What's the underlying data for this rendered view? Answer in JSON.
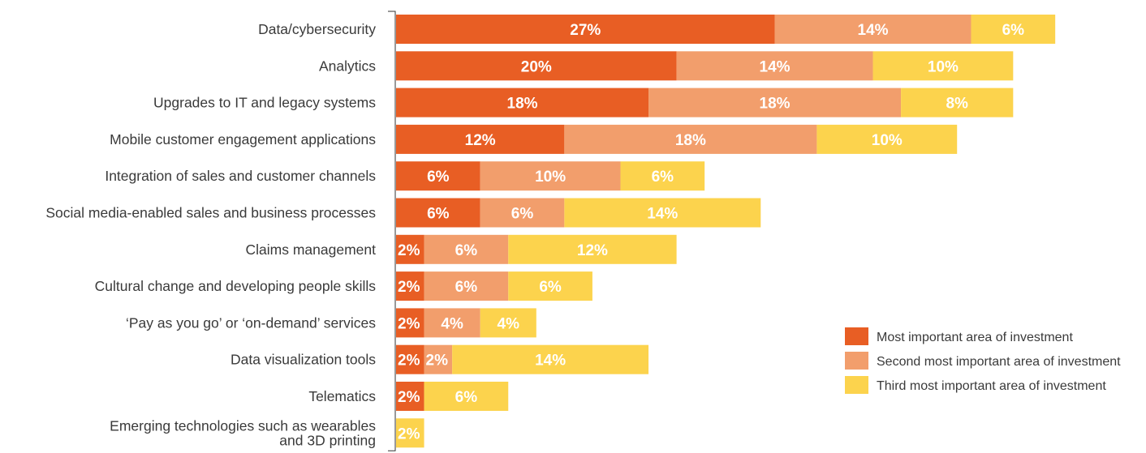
{
  "chart_data": {
    "type": "bar",
    "orientation": "horizontal",
    "stacked": true,
    "categories": [
      "Data/cybersecurity",
      "Analytics",
      "Upgrades to IT and legacy systems",
      "Mobile customer engagement applications",
      "Integration of sales and customer channels",
      "Social media-enabled sales and business processes",
      "Claims management",
      "Cultural change and developing people skills",
      "‘Pay as you go’ or ‘on-demand’ services",
      "Data visualization tools",
      "Telematics",
      "Emerging technologies such as wearables and 3D printing"
    ],
    "category_lines": [
      [
        "Data/cybersecurity"
      ],
      [
        "Analytics"
      ],
      [
        "Upgrades to IT and legacy systems"
      ],
      [
        "Mobile customer engagement applications"
      ],
      [
        "Integration of sales and customer channels"
      ],
      [
        "Social media-enabled sales and business processes"
      ],
      [
        "Claims management"
      ],
      [
        "Cultural change and developing people skills"
      ],
      [
        "‘Pay as you go’ or ‘on-demand’ services"
      ],
      [
        "Data visualization tools"
      ],
      [
        "Telematics"
      ],
      [
        "Emerging technologies such as wearables",
        "and 3D printing"
      ]
    ],
    "series": [
      {
        "name": "Most important area of investment",
        "color": "#e85e24",
        "values": [
          27,
          20,
          18,
          12,
          6,
          6,
          2,
          2,
          2,
          2,
          2,
          0
        ],
        "labels": [
          "27%",
          "20%",
          "18%",
          "12%",
          "6%",
          "6%",
          "2%",
          "2%",
          "2%",
          "2%",
          "2%",
          ""
        ]
      },
      {
        "name": "Second most important area of investment",
        "color": "#f29e6c",
        "values": [
          14,
          14,
          18,
          18,
          10,
          6,
          6,
          6,
          4,
          2,
          0,
          0
        ],
        "labels": [
          "14%",
          "14%",
          "18%",
          "18%",
          "10%",
          "6%",
          "6%",
          "6%",
          "4%",
          "2%",
          "",
          ""
        ]
      },
      {
        "name": "Third most important area of investment",
        "color": "#fcd34d",
        "values": [
          6,
          10,
          8,
          10,
          6,
          14,
          12,
          6,
          4,
          14,
          6,
          2
        ],
        "labels": [
          "6%",
          "10%",
          "8%",
          "10%",
          "6%",
          "14%",
          "12%",
          "6%",
          "4%",
          "14%",
          "6%",
          "2%"
        ]
      }
    ],
    "xlim": [
      0,
      48
    ],
    "grid": false,
    "legend_position": "right"
  }
}
